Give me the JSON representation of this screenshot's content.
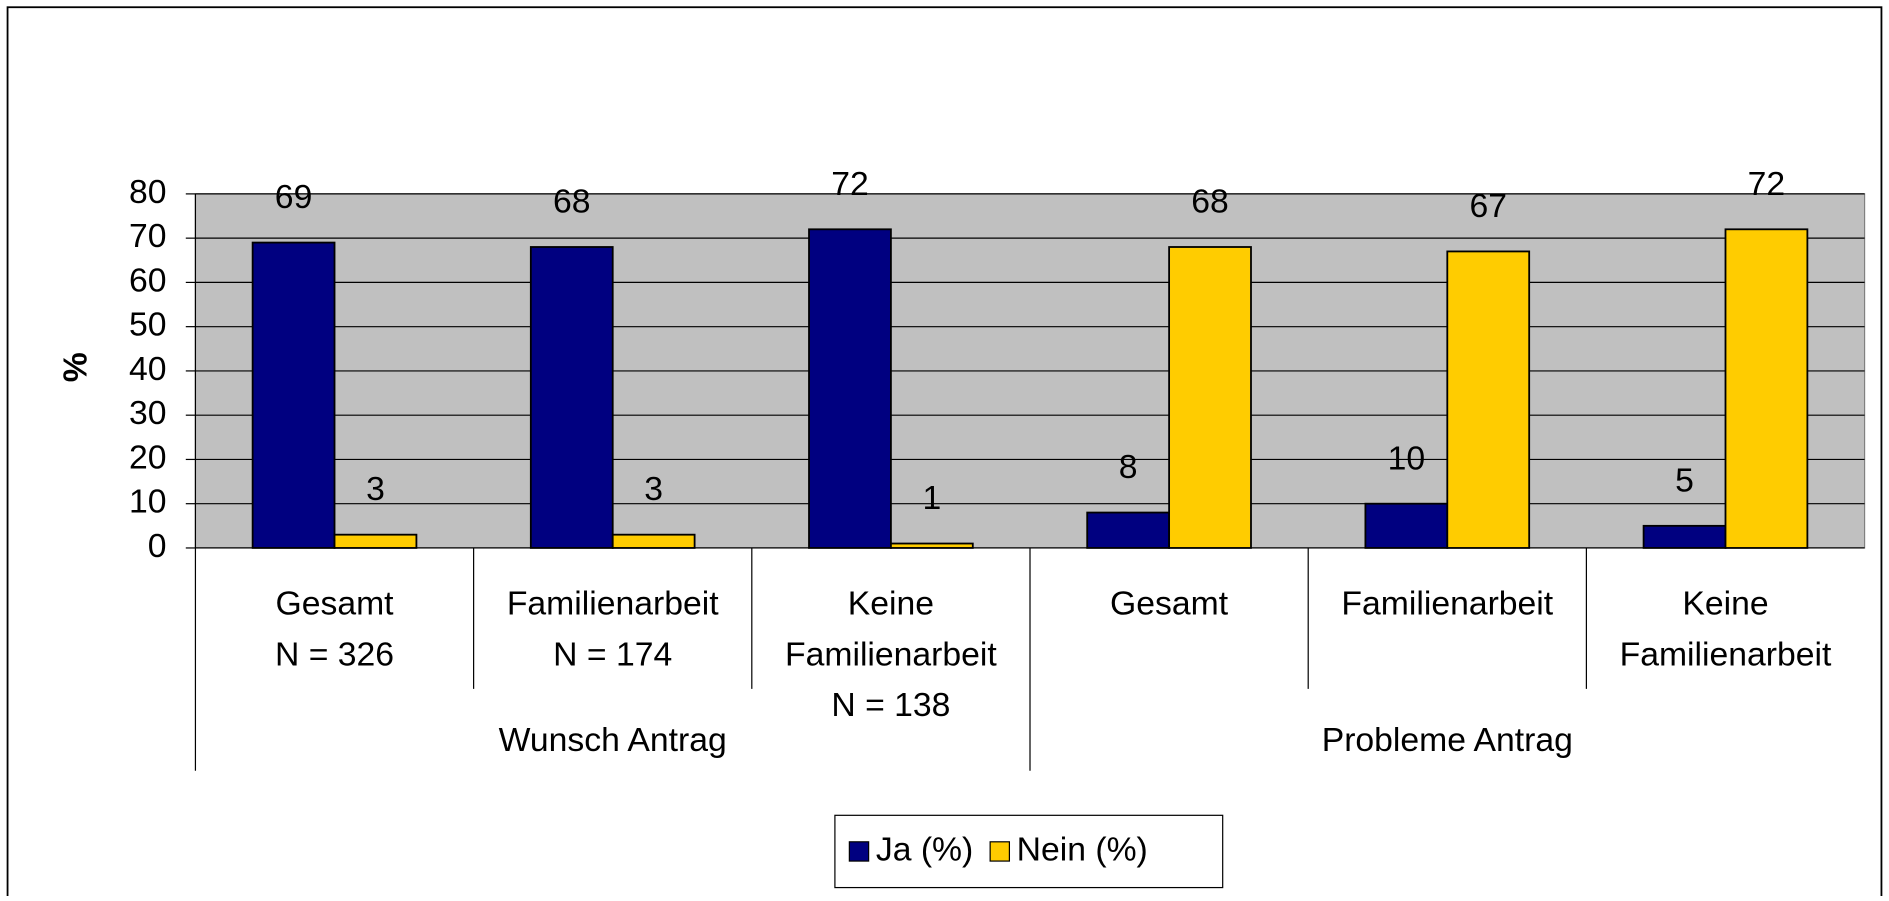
{
  "chart_data": {
    "type": "bar",
    "y_label": "%",
    "groups": [
      {
        "name": "Wunsch Antrag",
        "categories": [
          [
            "Gesamt",
            "N = 326"
          ],
          [
            "Familienarbeit",
            "N = 174"
          ],
          [
            "Keine",
            "Familienarbeit",
            "N = 138"
          ]
        ]
      },
      {
        "name": "Probleme Antrag",
        "categories": [
          [
            "Gesamt"
          ],
          [
            "Familienarbeit"
          ],
          [
            "Keine",
            "Familienarbeit"
          ]
        ]
      }
    ],
    "series": [
      {
        "name": "Ja (%)",
        "color": "#000080",
        "values": [
          69,
          68,
          72,
          8,
          10,
          5
        ]
      },
      {
        "name": "Nein (%)",
        "color": "#ffcc00",
        "values": [
          3,
          3,
          1,
          68,
          67,
          72
        ]
      }
    ],
    "ylim": [
      0,
      80
    ],
    "yticks": [
      0,
      10,
      20,
      30,
      40,
      50,
      60,
      70,
      80
    ],
    "grid": true,
    "legend": "bottom"
  }
}
